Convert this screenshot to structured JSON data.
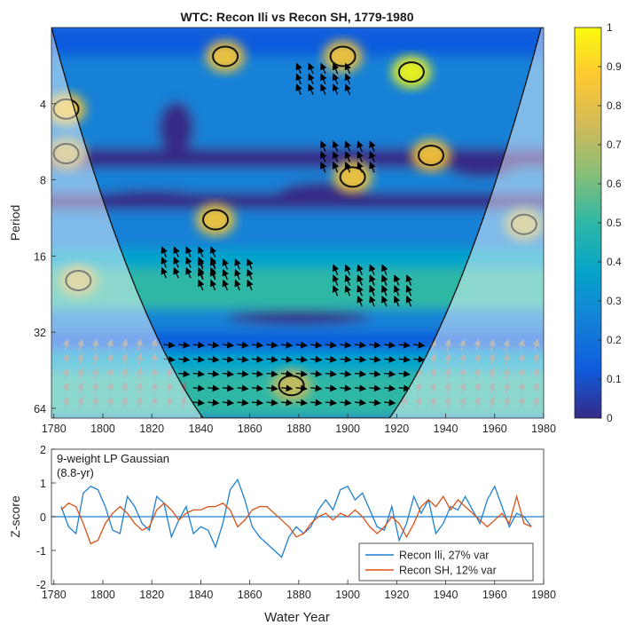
{
  "chart_data": [
    {
      "type": "heatmap",
      "title": "WTC: Recon Ili vs Recon SH,  1779-1980",
      "xlabel": "",
      "ylabel": "Period",
      "xlim": [
        1779,
        1980
      ],
      "x_ticks": [
        "1780",
        "1800",
        "1820",
        "1840",
        "1860",
        "1880",
        "1900",
        "1920",
        "1940",
        "1960",
        "1980"
      ],
      "y_scale": "log2",
      "ylim": [
        2,
        70
      ],
      "y_ticks": [
        "4",
        "8",
        "16",
        "32",
        "64"
      ],
      "colorbar": {
        "range": [
          0,
          1
        ],
        "ticks": [
          "0",
          "0.1",
          "0.2",
          "0.3",
          "0.4",
          "0.5",
          "0.6",
          "0.7",
          "0.8",
          "0.9",
          "1"
        ],
        "colormap": "parula",
        "colors": [
          "#352a87",
          "#0f5cdd",
          "#1481d6",
          "#06a4ca",
          "#2eb7a4",
          "#87bf77",
          "#d1bb59",
          "#fec832",
          "#f9fb0e"
        ]
      },
      "cone_of_influence": "shaded outside the U-shaped curve",
      "significant_regions": [
        {
          "x": 1785,
          "y": 4.2,
          "value": 0.85
        },
        {
          "x": 1785,
          "y": 6.3,
          "value": 0.78
        },
        {
          "x": 1850,
          "y": 2.6,
          "value": 0.92
        },
        {
          "x": 1898,
          "y": 2.6,
          "value": 0.9
        },
        {
          "x": 1926,
          "y": 3.0,
          "value": 0.95
        },
        {
          "x": 1846,
          "y": 11.5,
          "value": 0.9
        },
        {
          "x": 1902,
          "y": 7.8,
          "value": 0.88
        },
        {
          "x": 1934,
          "y": 6.4,
          "value": 0.86
        },
        {
          "x": 1790,
          "y": 20,
          "value": 0.8
        },
        {
          "x": 1972,
          "y": 12,
          "value": 0.78
        },
        {
          "x": 1877,
          "y": 52,
          "value": 0.72
        }
      ]
    },
    {
      "type": "line",
      "annotation": "9-weight LP Gaussian\n(8.8-yr)",
      "xlabel": "Water Year",
      "ylabel": "Z-score",
      "xlim": [
        1779,
        1980
      ],
      "ylim": [
        -2,
        2
      ],
      "x_ticks": [
        "1780",
        "1800",
        "1820",
        "1840",
        "1860",
        "1880",
        "1900",
        "1920",
        "1940",
        "1960",
        "1980"
      ],
      "y_ticks": [
        "2",
        "1",
        "0",
        "-1",
        "-2"
      ],
      "legend_location": "bottom-right",
      "series": [
        {
          "name": "Recon Ili, 27% var",
          "color": "#1f7fd0",
          "x": [
            1783,
            1786,
            1789,
            1792,
            1795,
            1798,
            1801,
            1804,
            1807,
            1810,
            1813,
            1816,
            1819,
            1822,
            1825,
            1828,
            1831,
            1834,
            1837,
            1840,
            1843,
            1846,
            1849,
            1852,
            1855,
            1858,
            1861,
            1864,
            1867,
            1870,
            1873,
            1876,
            1879,
            1882,
            1885,
            1888,
            1891,
            1894,
            1897,
            1900,
            1903,
            1906,
            1909,
            1912,
            1915,
            1918,
            1921,
            1924,
            1927,
            1930,
            1933,
            1936,
            1939,
            1942,
            1945,
            1948,
            1951,
            1954,
            1957,
            1960,
            1963,
            1966,
            1969,
            1972,
            1975
          ],
          "y": [
            0.3,
            -0.3,
            -0.5,
            0.7,
            0.9,
            0.8,
            0.3,
            -0.4,
            -0.5,
            0.6,
            0.3,
            -0.2,
            -0.4,
            0.6,
            0.4,
            -0.6,
            -0.1,
            0.3,
            -0.5,
            -0.3,
            -0.4,
            -0.9,
            -0.2,
            0.8,
            1.1,
            0.5,
            -0.3,
            -0.6,
            -0.8,
            -1.0,
            -1.2,
            -0.6,
            -0.3,
            -0.5,
            -0.3,
            0.2,
            0.5,
            0.2,
            0.8,
            0.9,
            0.5,
            0.7,
            0.2,
            -0.3,
            -0.4,
            0.3,
            -0.7,
            -0.2,
            0.6,
            0.1,
            0.5,
            -0.5,
            -0.2,
            0.3,
            0.2,
            0.6,
            0.2,
            -0.2,
            0.5,
            0.9,
            0.3,
            -0.3,
            0.1,
            0.0,
            -0.3
          ]
        },
        {
          "name": "Recon SH, 12% var",
          "color": "#d95319",
          "x": [
            1783,
            1786,
            1789,
            1792,
            1795,
            1798,
            1801,
            1804,
            1807,
            1810,
            1813,
            1816,
            1819,
            1822,
            1825,
            1828,
            1831,
            1834,
            1837,
            1840,
            1843,
            1846,
            1849,
            1852,
            1855,
            1858,
            1861,
            1864,
            1867,
            1870,
            1873,
            1876,
            1879,
            1882,
            1885,
            1888,
            1891,
            1894,
            1897,
            1900,
            1903,
            1906,
            1909,
            1912,
            1915,
            1918,
            1921,
            1924,
            1927,
            1930,
            1933,
            1936,
            1939,
            1942,
            1945,
            1948,
            1951,
            1954,
            1957,
            1960,
            1963,
            1966,
            1969,
            1972,
            1975
          ],
          "y": [
            0.2,
            0.4,
            0.3,
            -0.2,
            -0.8,
            -0.7,
            -0.2,
            0.1,
            0.3,
            0.1,
            -0.2,
            -0.4,
            -0.3,
            0.2,
            0.4,
            0.2,
            -0.1,
            0.1,
            0.2,
            0.2,
            0.3,
            0.3,
            0.4,
            0.2,
            -0.3,
            -0.1,
            0.2,
            0.3,
            0.3,
            0.1,
            -0.1,
            -0.3,
            -0.6,
            -0.5,
            -0.2,
            0.0,
            0.1,
            -0.1,
            0.1,
            0.0,
            0.2,
            0.0,
            -0.3,
            -0.5,
            -0.3,
            0.0,
            -0.2,
            -0.6,
            -0.2,
            0.3,
            0.5,
            0.3,
            0.6,
            0.2,
            0.5,
            0.3,
            0.1,
            -0.1,
            -0.3,
            -0.1,
            0.1,
            -0.2,
            0.6,
            -0.2,
            -0.3
          ]
        }
      ]
    }
  ]
}
